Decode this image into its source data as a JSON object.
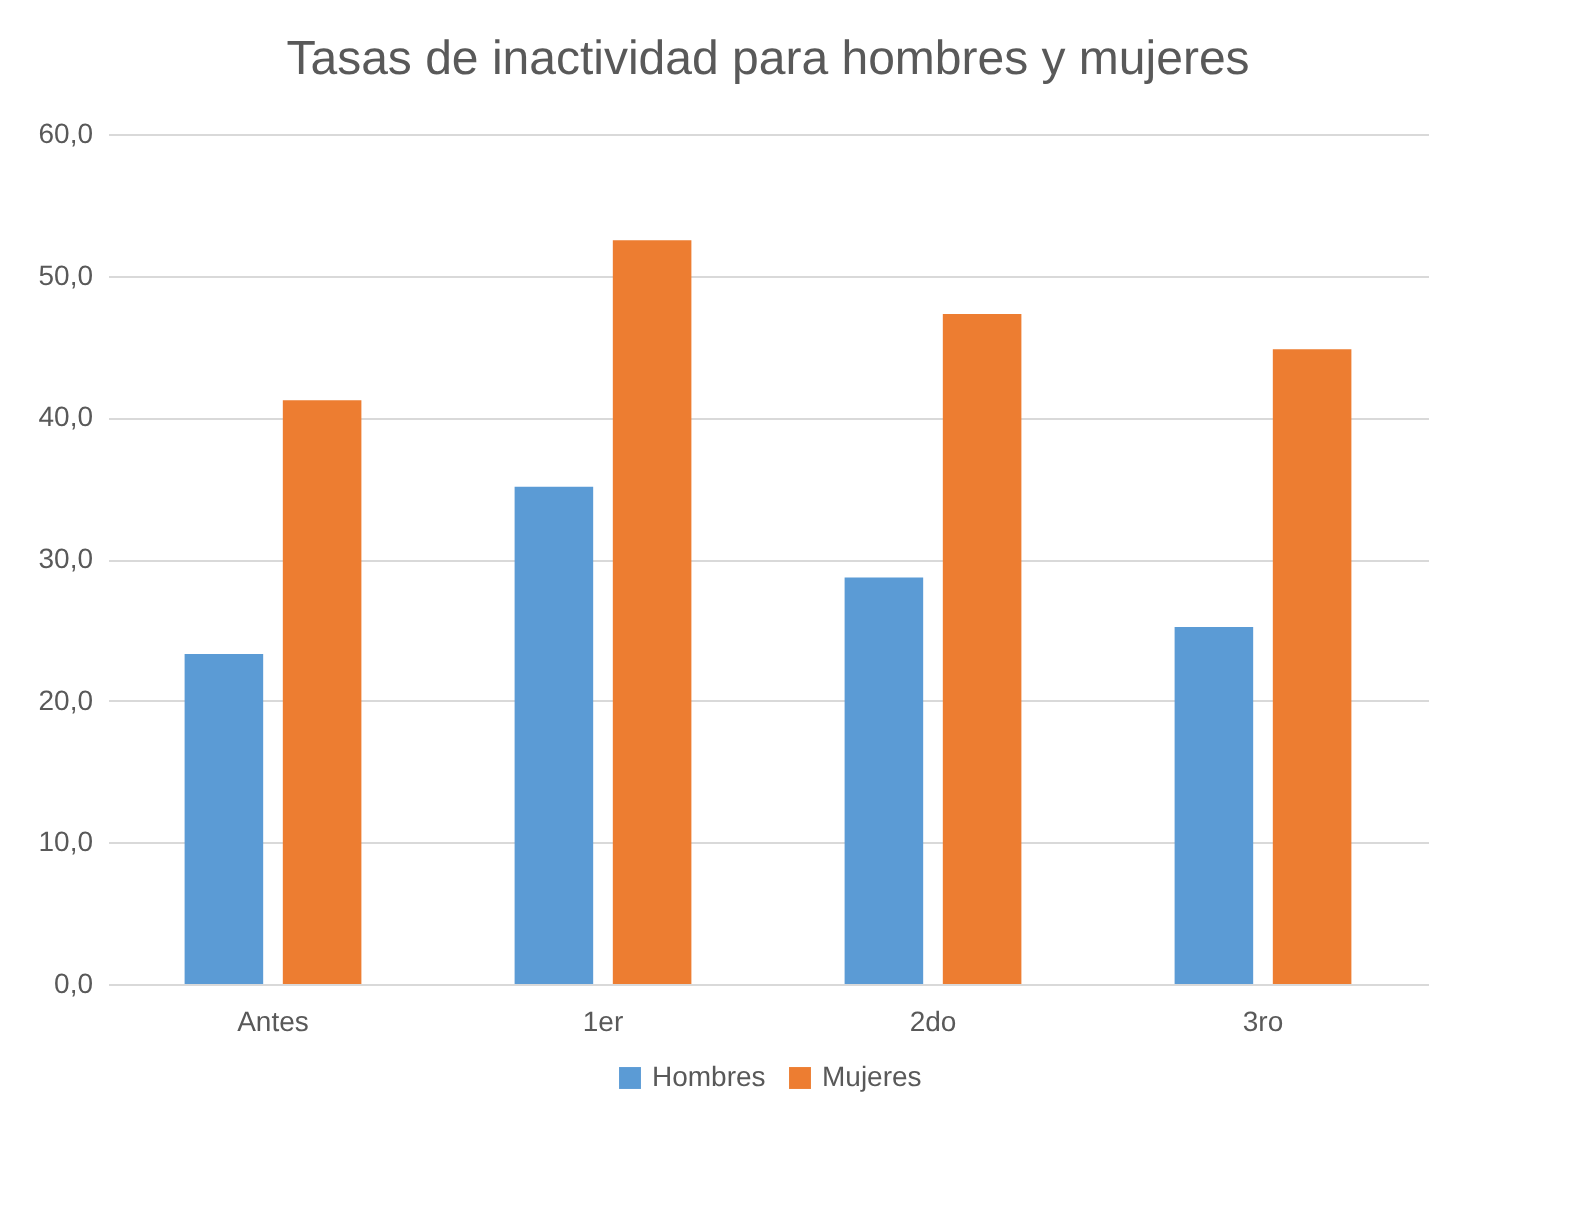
{
  "chart_data": {
    "type": "bar",
    "title": "Tasas de inactividad para hombres y mujeres",
    "categories": [
      "Antes",
      "1er",
      "2do",
      "3ro"
    ],
    "series": [
      {
        "name": "Hombres",
        "color": "#5b9bd5",
        "values": [
          23.3,
          35.1,
          28.7,
          25.2
        ]
      },
      {
        "name": "Mujeres",
        "color": "#ed7d31",
        "values": [
          41.2,
          52.5,
          47.3,
          44.8
        ]
      }
    ],
    "ylim": [
      0,
      60
    ],
    "yticks": [
      {
        "value": 0,
        "label": "0,0"
      },
      {
        "value": 10,
        "label": "10,0"
      },
      {
        "value": 20,
        "label": "20,0"
      },
      {
        "value": 30,
        "label": "30,0"
      },
      {
        "value": 40,
        "label": "40,0"
      },
      {
        "value": 50,
        "label": "50,0"
      },
      {
        "value": 60,
        "label": "60,0"
      }
    ],
    "grid": "y",
    "legend": "bottom"
  }
}
